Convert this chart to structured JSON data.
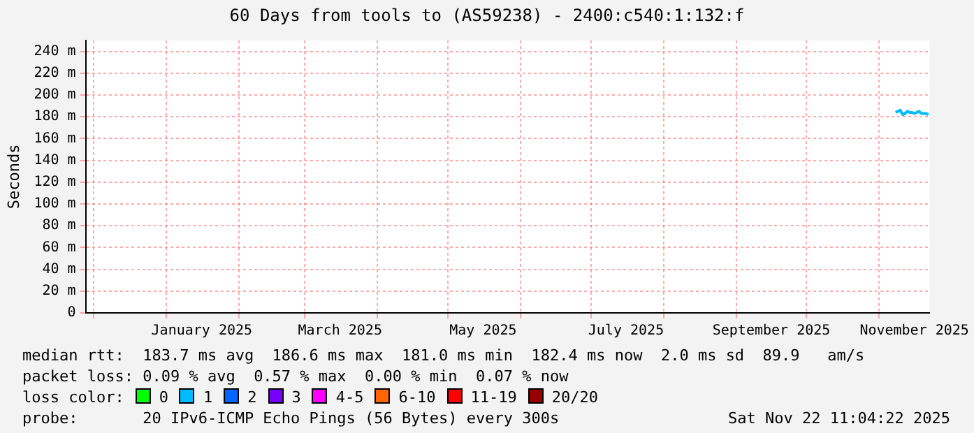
{
  "chart_data": {
    "type": "line",
    "title": "60 Days from tools to (AS59238) - 2400:c540:1:132:f",
    "ylabel": "Seconds",
    "x": [
      "2025-11-08T00:00",
      "2025-11-09T00:00",
      "2025-11-10T00:00",
      "2025-11-11T00:00",
      "2025-11-12T00:00",
      "2025-11-13T00:00",
      "2025-11-14T00:00",
      "2025-11-15T00:00",
      "2025-11-16T00:00",
      "2025-11-17T00:00",
      "2025-11-18T00:00",
      "2025-11-19T00:00",
      "2025-11-20T00:00",
      "2025-11-21T00:00",
      "2025-11-22T00:00"
    ],
    "series": [
      {
        "color": "#00bbff",
        "values": [
          184,
          185,
          186,
          182,
          183,
          185,
          184,
          184,
          183,
          184,
          185,
          183,
          183,
          183,
          182
        ]
      }
    ],
    "xlim": [
      "2024-11-27T11:04",
      "2025-11-22T11:04"
    ],
    "xticks": [
      {
        "value": "2024-12-01",
        "label": null
      },
      {
        "value": "2025-01-01",
        "label": null
      },
      {
        "value": "2025-01-16",
        "label": "January 2025"
      },
      {
        "value": "2025-02-01",
        "label": null
      },
      {
        "value": "2025-03-01",
        "label": null
      },
      {
        "value": "2025-03-16",
        "label": "March 2025"
      },
      {
        "value": "2025-04-01",
        "label": null
      },
      {
        "value": "2025-05-01",
        "label": null
      },
      {
        "value": "2025-05-16",
        "label": "May 2025"
      },
      {
        "value": "2025-06-01",
        "label": null
      },
      {
        "value": "2025-07-01",
        "label": null
      },
      {
        "value": "2025-07-16",
        "label": "July 2025"
      },
      {
        "value": "2025-08-01",
        "label": null
      },
      {
        "value": "2025-09-01",
        "label": null
      },
      {
        "value": "2025-09-16",
        "label": "September 2025"
      },
      {
        "value": "2025-10-01",
        "label": null
      },
      {
        "value": "2025-11-01",
        "label": null
      },
      {
        "value": "2025-11-16",
        "label": "November 2025"
      }
    ],
    "ylim": [
      0,
      250
    ],
    "yticks": [
      0,
      {
        "value": 20,
        "label": "20 m"
      },
      {
        "value": 40,
        "label": "40 m"
      },
      {
        "value": 60,
        "label": "60 m"
      },
      {
        "value": 80,
        "label": "80 m"
      },
      {
        "value": 100,
        "label": "100 m"
      },
      {
        "value": 120,
        "label": "120 m"
      },
      {
        "value": 140,
        "label": "140 m"
      },
      {
        "value": 160,
        "label": "160 m"
      },
      {
        "value": 180,
        "label": "180 m"
      },
      {
        "value": 200,
        "label": "200 m"
      },
      {
        "value": 220,
        "label": "220 m"
      },
      {
        "value": 240,
        "label": "240 m"
      }
    ],
    "grid": true,
    "legend": false,
    "annotations": [
      "median rtt:  183.7 ms avg  186.6 ms max  181.0 ms min  182.4 ms now  2.0 ms sd  89.9   am/s",
      "packet loss: 0.09 % avg  0.57 % max  0.00 % min  0.07 % now",
      "loss color:",
      "0",
      "1",
      "2",
      "3",
      "4-5",
      "6-10",
      "11-19",
      "20/20",
      "probe:       20 IPv6-ICMP Echo Pings (56 Bytes) every 300s",
      "Sat Nov 22 11:04:22 2025"
    ]
  }
}
